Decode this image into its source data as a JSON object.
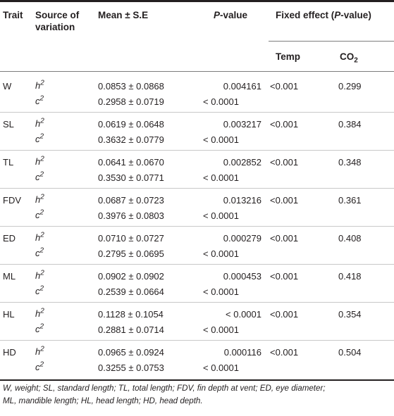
{
  "header": {
    "trait": "Trait",
    "source_line1": "Source of",
    "source_line2": "variation",
    "mean": "Mean ± S.E",
    "p_italic": "P",
    "p_rest": "-value",
    "fixed_pre": "Fixed effect (",
    "fixed_p": "P",
    "fixed_post": "-value)",
    "temp": "Temp",
    "co2_base": "CO",
    "co2_sub": "2"
  },
  "rows": [
    {
      "trait": "W",
      "h_mean": "0.0853 ± 0.0868",
      "h_p": "0.004161",
      "c_mean": "0.2958 ± 0.0719",
      "c_p": "< 0.0001",
      "temp": "<0.001",
      "co2": "0.299"
    },
    {
      "trait": "SL",
      "h_mean": "0.0619 ± 0.0648",
      "h_p": "0.003217",
      "c_mean": "0.3632 ± 0.0779",
      "c_p": "< 0.0001",
      "temp": "<0.001",
      "co2": "0.384"
    },
    {
      "trait": "TL",
      "h_mean": "0.0641 ± 0.0670",
      "h_p": "0.002852",
      "c_mean": "0.3530 ± 0.0771",
      "c_p": "< 0.0001",
      "temp": "<0.001",
      "co2": "0.348"
    },
    {
      "trait": "FDV",
      "h_mean": "0.0687 ± 0.0723",
      "h_p": "0.013216",
      "c_mean": "0.3976 ± 0.0803",
      "c_p": "< 0.0001",
      "temp": "<0.001",
      "co2": "0.361"
    },
    {
      "trait": "ED",
      "h_mean": "0.0710 ± 0.0727",
      "h_p": "0.000279",
      "c_mean": "0.2795 ± 0.0695",
      "c_p": "< 0.0001",
      "temp": "<0.001",
      "co2": "0.408"
    },
    {
      "trait": "ML",
      "h_mean": "0.0902 ± 0.0902",
      "h_p": "0.000453",
      "c_mean": "0.2539 ± 0.0664",
      "c_p": "< 0.0001",
      "temp": "<0.001",
      "co2": "0.418"
    },
    {
      "trait": "HL",
      "h_mean": "0.1128 ± 0.1054",
      "h_p": "< 0.0001",
      "c_mean": "0.2881 ± 0.0714",
      "c_p": "< 0.0001",
      "temp": "<0.001",
      "co2": "0.354"
    },
    {
      "trait": "HD",
      "h_mean": "0.0965 ± 0.0924",
      "h_p": "0.000116",
      "c_mean": "0.3255 ± 0.0753",
      "c_p": "< 0.0001",
      "temp": "<0.001",
      "co2": "0.504"
    }
  ],
  "labels": {
    "h": "h",
    "c": "c",
    "sq": "2"
  },
  "caption": {
    "line1": "W, weight; SL, standard length; TL, total length; FDV, fin depth at vent; ED, eye diameter;",
    "line2": "ML, mandible length; HL, head length; HD, head depth."
  }
}
